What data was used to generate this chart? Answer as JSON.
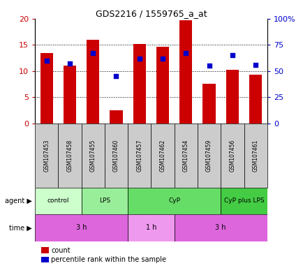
{
  "title": "GDS2216 / 1559765_a_at",
  "samples": [
    "GSM107453",
    "GSM107458",
    "GSM107455",
    "GSM107460",
    "GSM107457",
    "GSM107462",
    "GSM107454",
    "GSM107459",
    "GSM107456",
    "GSM107461"
  ],
  "counts": [
    13.5,
    11.0,
    16.0,
    2.5,
    15.2,
    14.7,
    19.7,
    7.5,
    10.3,
    9.3
  ],
  "percentiles": [
    60,
    57,
    67,
    45,
    62,
    62,
    67,
    55,
    65,
    56
  ],
  "ylim_left": [
    0,
    20
  ],
  "ylim_right": [
    0,
    100
  ],
  "yticks_left": [
    0,
    5,
    10,
    15,
    20
  ],
  "yticks_right": [
    0,
    25,
    50,
    75,
    100
  ],
  "ytick_labels_left": [
    "0",
    "5",
    "10",
    "15",
    "20"
  ],
  "ytick_labels_right": [
    "0",
    "25",
    "50",
    "75",
    "100%"
  ],
  "bar_color": "#cc0000",
  "dot_color": "#0000cc",
  "agent_groups": [
    {
      "label": "control",
      "start": 0,
      "end": 2,
      "color": "#ccffcc"
    },
    {
      "label": "LPS",
      "start": 2,
      "end": 4,
      "color": "#99ee99"
    },
    {
      "label": "CyP",
      "start": 4,
      "end": 8,
      "color": "#66dd66"
    },
    {
      "label": "CyP plus LPS",
      "start": 8,
      "end": 10,
      "color": "#44cc44"
    }
  ],
  "time_groups": [
    {
      "label": "3 h",
      "start": 0,
      "end": 4,
      "color": "#dd66dd"
    },
    {
      "label": "1 h",
      "start": 4,
      "end": 6,
      "color": "#ee99ee"
    },
    {
      "label": "3 h",
      "start": 6,
      "end": 10,
      "color": "#dd66dd"
    }
  ],
  "agent_label": "agent",
  "time_label": "time",
  "legend_count_label": "count",
  "legend_pct_label": "percentile rank within the sample",
  "bar_color_legend": "#cc0000",
  "dot_color_legend": "#0000cc",
  "bar_width": 0.55,
  "plot_bg": "#ffffff",
  "sample_bg": "#cccccc",
  "grid_yticks": [
    5,
    10,
    15
  ]
}
